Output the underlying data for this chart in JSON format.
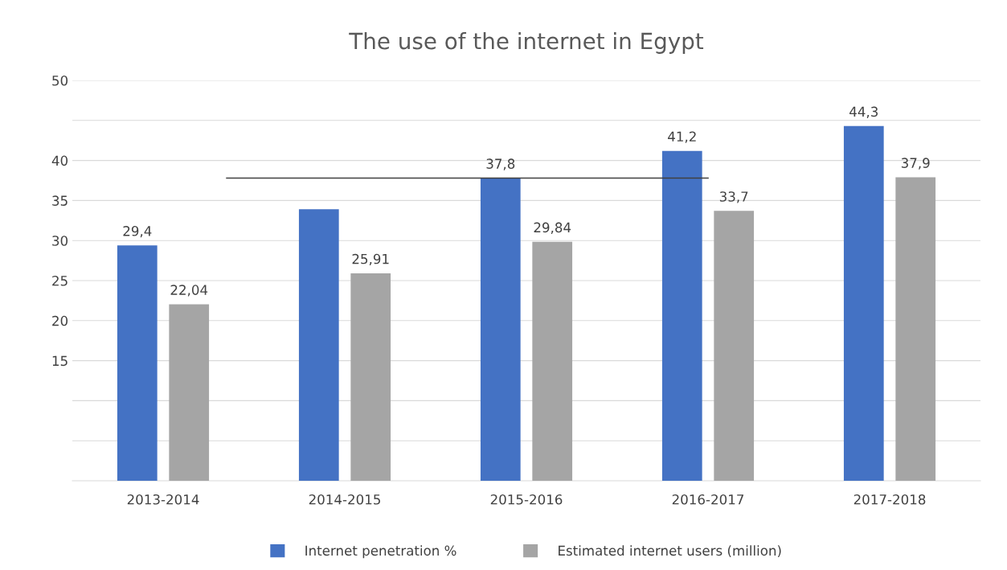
{
  "chart_data": {
    "type": "bar",
    "title": "The use of the internet in Egypt",
    "categories": [
      "2013-2014",
      "2014-2015",
      "2015-2016",
      "2016-2017",
      "2017-2018"
    ],
    "series": [
      {
        "name": "Internet penetration %",
        "color": "#4472c4",
        "values": [
          29.4,
          33.9,
          37.8,
          41.2,
          44.3
        ],
        "value_labels": [
          "29,4",
          null,
          "37,8",
          "41,2",
          "44,3"
        ]
      },
      {
        "name": "Estimated internet users (million)",
        "color": "#a5a5a5",
        "values": [
          22.04,
          25.91,
          29.84,
          33.7,
          37.9
        ],
        "value_labels": [
          "22,04",
          "25,91",
          "29,84",
          "33,7",
          "37,9"
        ]
      }
    ],
    "ylim": [
      0,
      50
    ],
    "yticks": [
      {
        "value": 5,
        "label": null
      },
      {
        "value": 10,
        "label": null
      },
      15,
      20,
      25,
      30,
      35,
      40,
      {
        "value": 45,
        "label": null
      },
      50
    ],
    "ref_lines": [
      {
        "axis": "y",
        "value": 37.8,
        "color": "#404040"
      }
    ],
    "grid": "y",
    "legend": "bottom"
  }
}
